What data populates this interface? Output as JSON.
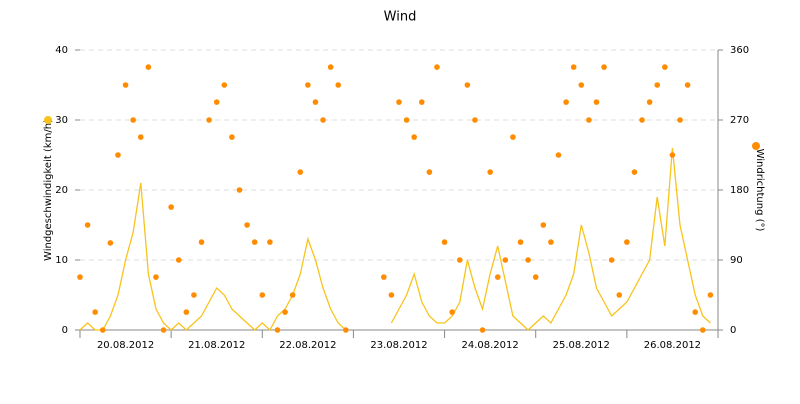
{
  "chart_data": {
    "type": "line-scatter",
    "title": "Wind",
    "ylabel": "Windgeschwindigkeit (km/h)",
    "y2label": "Windrichtung (°)",
    "x": [
      0,
      2,
      4,
      6,
      8,
      10,
      12,
      14,
      16,
      18,
      20,
      22,
      24,
      26,
      28,
      30,
      32,
      34,
      36,
      38,
      40,
      42,
      44,
      46,
      48,
      50,
      52,
      54,
      56,
      58,
      60,
      62,
      64,
      66,
      68,
      70,
      72,
      74,
      76,
      78,
      80,
      82,
      84,
      86,
      88,
      90,
      92,
      94,
      96,
      98,
      100,
      102,
      104,
      106,
      108,
      110,
      112,
      114,
      116,
      118,
      120,
      122,
      124,
      126,
      128,
      130,
      132,
      134,
      136,
      138,
      140,
      142,
      144,
      146,
      148,
      150,
      152,
      154,
      156,
      158,
      160,
      162,
      164,
      166
    ],
    "xlim": [
      0,
      168
    ],
    "xticks": [
      {
        "value": 0,
        "label": "20.08.2012"
      },
      {
        "value": 24,
        "label": "21.08.2012"
      },
      {
        "value": 48,
        "label": "22.08.2012"
      },
      {
        "value": 72,
        "label": "23.08.2012"
      },
      {
        "value": 96,
        "label": "24.08.2012"
      },
      {
        "value": 120,
        "label": "25.08.2012"
      },
      {
        "value": 144,
        "label": "26.08.2012"
      }
    ],
    "ylim": [
      0,
      40
    ],
    "yticks": [
      0,
      10,
      20,
      30,
      40
    ],
    "y2lim": [
      0,
      360
    ],
    "y2ticks": [
      0,
      90,
      180,
      270,
      360
    ],
    "grid": true,
    "series": [
      {
        "type": "line",
        "color": "#f7c31c",
        "values": [
          0,
          1,
          0,
          0,
          2,
          5,
          10,
          14,
          21,
          8,
          3,
          1,
          0,
          1,
          0,
          1,
          2,
          4,
          6,
          5,
          3,
          2,
          1,
          0,
          1,
          0,
          2,
          3,
          5,
          8,
          13,
          10,
          6,
          3,
          1,
          0,
          null,
          null,
          null,
          null,
          null,
          1,
          3,
          5,
          8,
          4,
          2,
          1,
          1,
          2,
          4,
          10,
          6,
          3,
          8,
          12,
          7,
          2,
          1,
          0,
          1,
          2,
          1,
          3,
          5,
          8,
          15,
          11,
          6,
          4,
          2,
          3,
          4,
          6,
          8,
          10,
          19,
          12,
          26,
          15,
          10,
          5,
          2,
          1
        ]
      },
      {
        "type": "scatter",
        "axis": "y2",
        "color": "#ff8c00",
        "values": [
          68,
          135,
          23,
          0,
          112,
          225,
          315,
          270,
          248,
          338,
          68,
          0,
          158,
          90,
          23,
          45,
          113,
          270,
          293,
          315,
          248,
          180,
          135,
          113,
          45,
          113,
          0,
          23,
          45,
          203,
          315,
          293,
          270,
          338,
          315,
          0,
          null,
          null,
          null,
          null,
          68,
          45,
          293,
          270,
          248,
          293,
          203,
          338,
          113,
          23,
          90,
          315,
          270,
          0,
          203,
          68,
          90,
          248,
          113,
          90,
          68,
          135,
          113,
          225,
          293,
          338,
          315,
          270,
          293,
          338,
          90,
          45,
          113,
          203,
          270,
          293,
          315,
          338,
          225,
          270,
          315,
          23,
          0,
          45
        ]
      }
    ]
  }
}
